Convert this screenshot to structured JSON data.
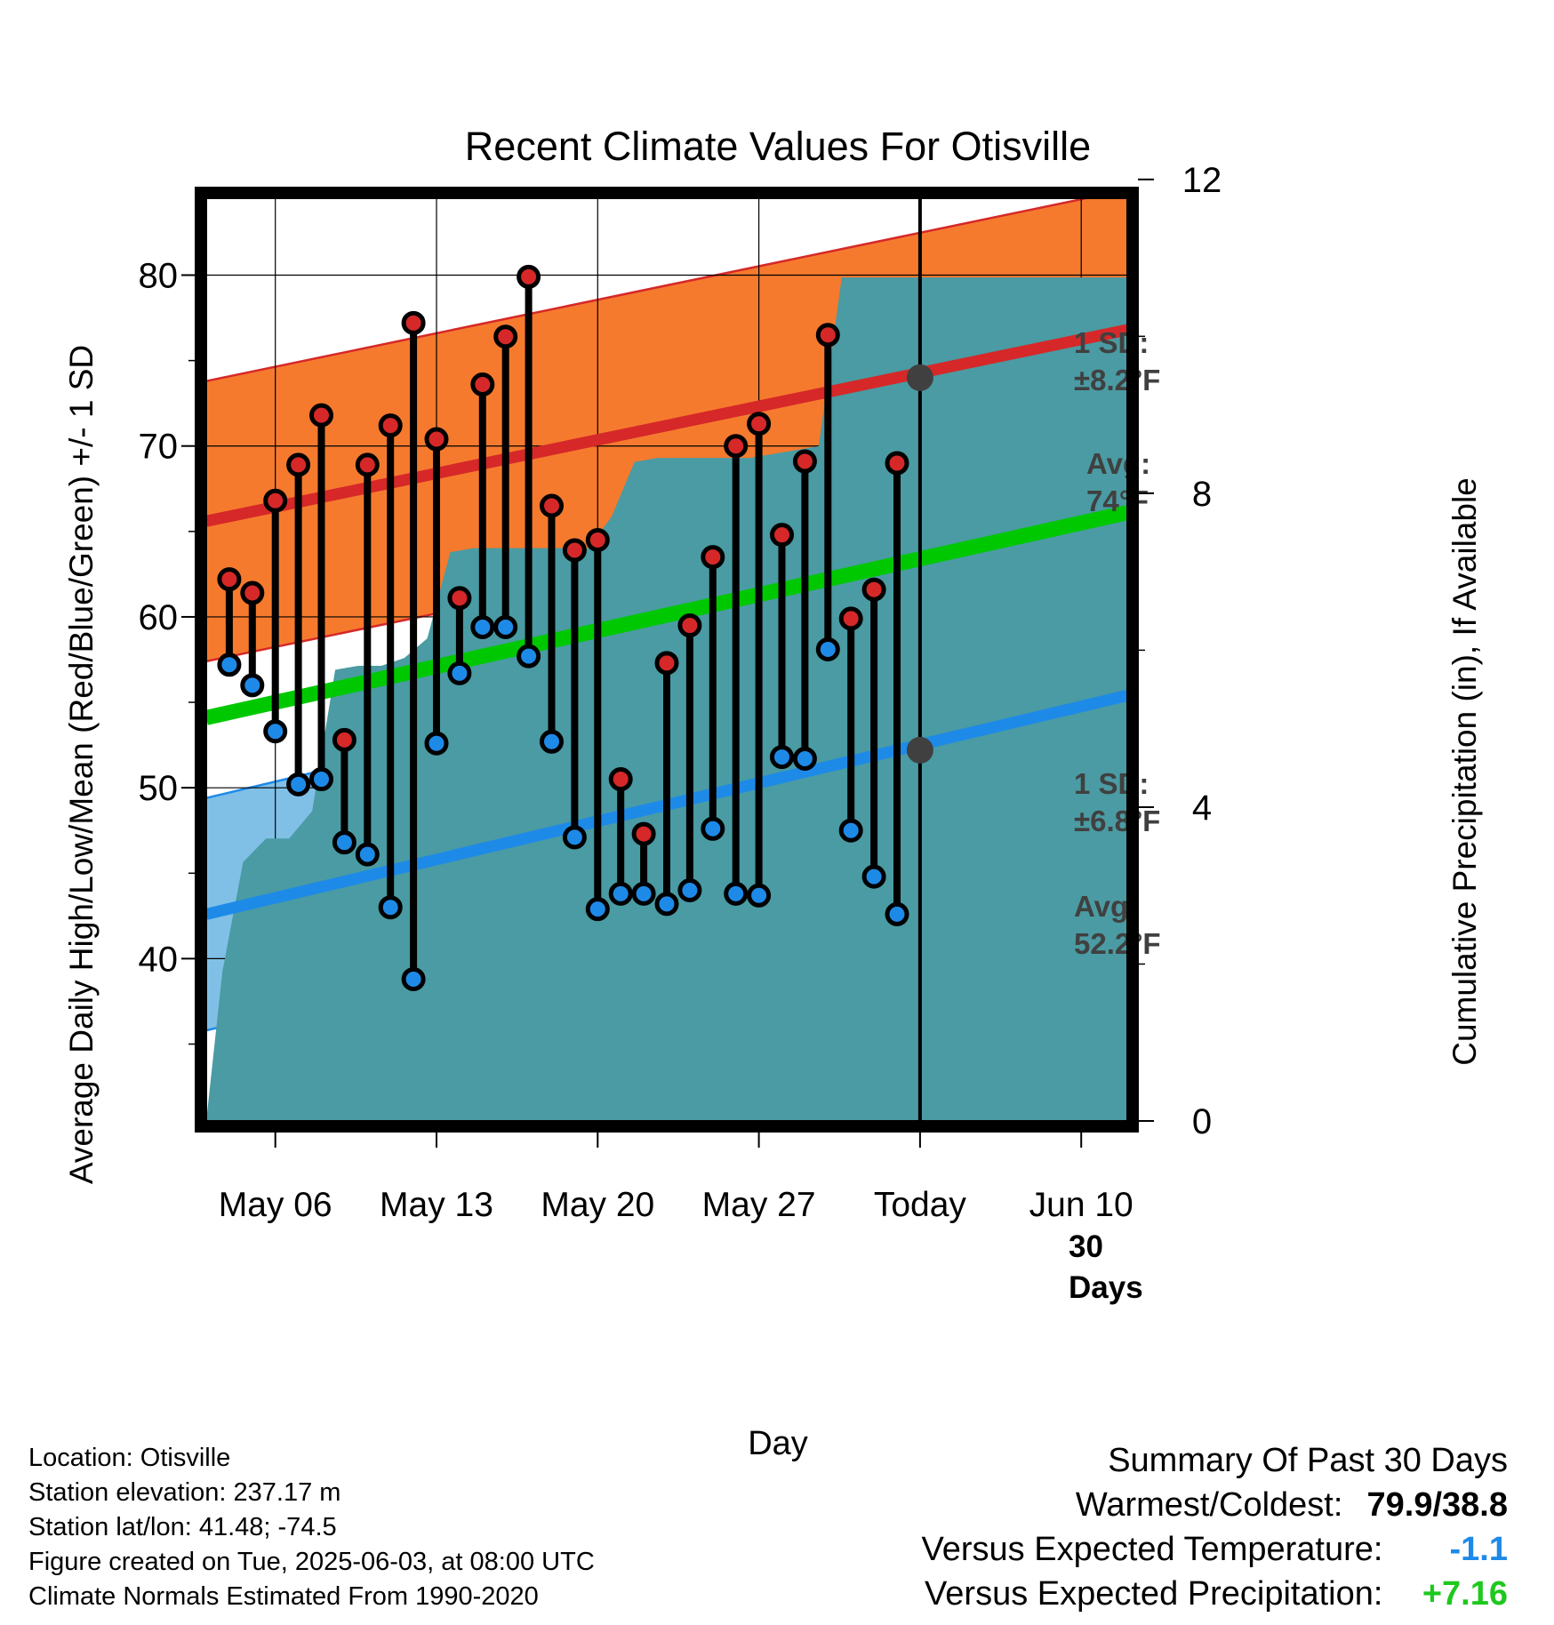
{
  "chart_data": {
    "type": "line",
    "title": "Recent Climate Values For Otisville",
    "xlabel": "Day",
    "ylabel": "Average Daily High/Low/Mean (Red/Blue/Green) +/- 1 SD",
    "y2label": "Cumulative Precipitation (in), If Available",
    "x_tick_labels": [
      "May 06",
      "May 13",
      "May 20",
      "May 27",
      "Today",
      "Jun 10"
    ],
    "x_tick_days": [
      "2025-05-06",
      "2025-05-13",
      "2025-05-20",
      "2025-05-27",
      "2025-06-03",
      "2025-06-10"
    ],
    "xlim": [
      "2025-05-03",
      "2025-06-12"
    ],
    "today": "2025-06-03",
    "ylim": [
      30.5,
      84.5
    ],
    "y_ticks": [
      40,
      50,
      60,
      70,
      80
    ],
    "y2lim": [
      0,
      11.76
    ],
    "y2_ticks": [
      0,
      4,
      8,
      12
    ],
    "grid": true,
    "days": [
      "2025-05-04",
      "2025-05-05",
      "2025-05-06",
      "2025-05-07",
      "2025-05-08",
      "2025-05-09",
      "2025-05-10",
      "2025-05-11",
      "2025-05-12",
      "2025-05-13",
      "2025-05-14",
      "2025-05-15",
      "2025-05-16",
      "2025-05-17",
      "2025-05-18",
      "2025-05-19",
      "2025-05-20",
      "2025-05-21",
      "2025-05-22",
      "2025-05-23",
      "2025-05-24",
      "2025-05-25",
      "2025-05-26",
      "2025-05-27",
      "2025-05-28",
      "2025-05-29",
      "2025-05-30",
      "2025-05-31",
      "2025-06-01",
      "2025-06-02"
    ],
    "highs": [
      62.2,
      61.4,
      66.8,
      68.9,
      71.8,
      52.8,
      68.9,
      71.2,
      77.2,
      70.4,
      61.1,
      73.6,
      76.4,
      79.9,
      66.5,
      63.9,
      64.5,
      50.5,
      47.3,
      57.3,
      59.5,
      63.5,
      70.0,
      71.3,
      64.8,
      69.1,
      76.5,
      59.9,
      61.6,
      69.0
    ],
    "lows": [
      57.2,
      56.0,
      53.3,
      50.2,
      50.5,
      46.8,
      46.1,
      43.0,
      38.8,
      52.6,
      56.7,
      59.4,
      59.4,
      57.7,
      52.7,
      47.1,
      42.9,
      43.8,
      43.8,
      43.2,
      44.0,
      47.6,
      43.8,
      43.7,
      51.8,
      51.7,
      58.1,
      47.5,
      44.8,
      42.6
    ],
    "normal_high": {
      "range_days": [
        "2025-05-03",
        "2025-06-12"
      ],
      "values": [
        65.6,
        76.8
      ]
    },
    "normal_low": {
      "range_days": [
        "2025-05-03",
        "2025-06-12"
      ],
      "values": [
        42.6,
        55.4
      ]
    },
    "normal_mean": {
      "range_days": [
        "2025-05-03",
        "2025-06-12"
      ],
      "values": [
        54.1,
        66.1
      ]
    },
    "sd_high": 8.2,
    "sd_low": 6.8,
    "avg_marker_high": 74.0,
    "avg_marker_low": 52.2,
    "precip_cumulative": [
      [
        "2025-05-03",
        0.0
      ],
      [
        "2025-05-03.7",
        1.9
      ],
      [
        "2025-05-04.6",
        3.3
      ],
      [
        "2025-05-05.6",
        3.6
      ],
      [
        "2025-05-06.6",
        3.6
      ],
      [
        "2025-05-07.6",
        3.95
      ],
      [
        "2025-05-08.6",
        5.75
      ],
      [
        "2025-05-09.6",
        5.8
      ],
      [
        "2025-05-10.6",
        5.8
      ],
      [
        "2025-05-11.6",
        5.9
      ],
      [
        "2025-05-12.6",
        6.15
      ],
      [
        "2025-05-13.6",
        7.25
      ],
      [
        "2025-05-14.6",
        7.3
      ],
      [
        "2025-05-15.6",
        7.3
      ],
      [
        "2025-05-16.6",
        7.3
      ],
      [
        "2025-05-17.6",
        7.3
      ],
      [
        "2025-05-18.6",
        7.3
      ],
      [
        "2025-05-19.6",
        7.3
      ],
      [
        "2025-05-20.6",
        7.7
      ],
      [
        "2025-05-21.6",
        8.4
      ],
      [
        "2025-05-22.6",
        8.45
      ],
      [
        "2025-05-23.6",
        8.45
      ],
      [
        "2025-05-24.6",
        8.45
      ],
      [
        "2025-05-25.6",
        8.45
      ],
      [
        "2025-05-26.6",
        8.45
      ],
      [
        "2025-05-27.6",
        8.5
      ],
      [
        "2025-05-28.6",
        8.55
      ],
      [
        "2025-05-29.6",
        8.6
      ],
      [
        "2025-05-30.6",
        10.75
      ],
      [
        "2025-06-03",
        10.75
      ],
      [
        "2025-06-12",
        10.75
      ]
    ],
    "colors": {
      "high_band": "#f57a2e",
      "high_band_edge": "#d62828",
      "high_line": "#d62828",
      "low_band": "#80c0e6",
      "low_band_edge": "#1e8ae8",
      "low_line": "#1e8ae8",
      "mean_line": "#00c800",
      "precip": "#4a9ba3",
      "high_dot": "#d62828",
      "low_dot": "#1e8ae8",
      "marker": "#404040"
    },
    "annotations": {
      "sd_high_label": [
        "1 SD:",
        "±8.2°F"
      ],
      "avg_high_label": [
        "Avg:",
        "74°F"
      ],
      "sd_low_label": [
        "1 SD:",
        "±6.8°F"
      ],
      "avg_low_label": [
        "Avg:",
        "52.2°F"
      ],
      "days_label": [
        "30",
        "Days"
      ]
    }
  },
  "footer": {
    "location": "Location: Otisville",
    "elevation": "Station elevation: 237.17 m",
    "latlon": "Station lat/lon: 41.48; -74.5",
    "created": "Figure created on Tue, 2025-06-03, at 08:00 UTC",
    "normals": "Climate Normals Estimated From 1990-2020"
  },
  "summary": {
    "heading": "Summary Of Past 30 Days",
    "warm_cold_label": "Warmest/Coldest:",
    "warm_cold_value": "79.9/38.8",
    "temp_label": "Versus Expected Temperature:",
    "temp_value": "-1.1",
    "temp_color": "#1e8ae8",
    "precip_label": "Versus Expected Precipitation:",
    "precip_value": "+7.16",
    "precip_color": "#1ec81e"
  }
}
